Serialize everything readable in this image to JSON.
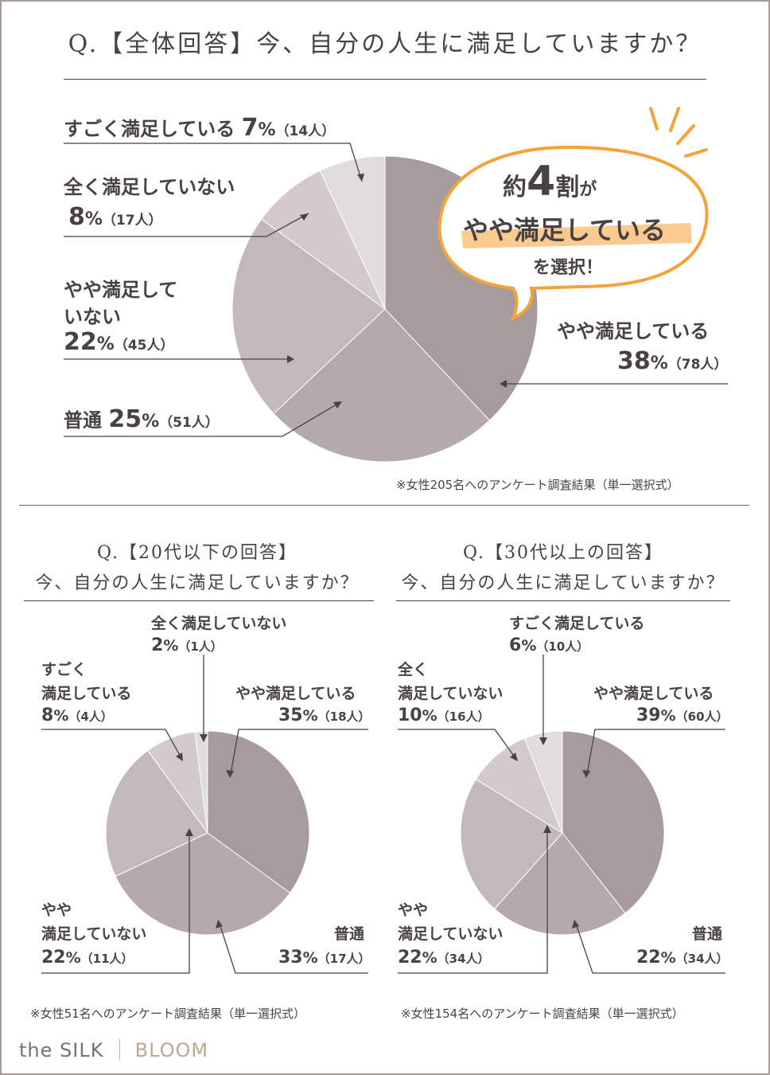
{
  "main": {
    "title": "Q.【全体回答】今、自分の人生に満足していますか？",
    "note": "※女性205名へのアンケート調査結果（単一選択式）",
    "labels": {
      "very": {
        "name": "すごく満足している",
        "pct": "7",
        "unit": "%",
        "count": "（14人）"
      },
      "not_at_all": {
        "name": "全く満足していない",
        "pct": "8",
        "unit": "%",
        "count": "（17人）"
      },
      "somewhat_not_1": "やや満足して",
      "somewhat_not_2": "いない",
      "somewhat_not": {
        "pct": "22",
        "unit": "%",
        "count": "（45人）"
      },
      "normal": {
        "name": "普通",
        "pct": "25",
        "unit": "%",
        "count": "（51人）"
      },
      "somewhat": {
        "name": "やや満足している",
        "pct": "38",
        "unit": "%",
        "count": "（78人）"
      }
    },
    "callout": {
      "pre": "約",
      "num": "4",
      "post1": "割",
      "post2": "が",
      "line2": "やや満足している",
      "line3": "を選択！",
      "accent_color": "#f4a338"
    }
  },
  "under20": {
    "title_line1": "Q.【20代以下の回答】",
    "title_line2": "今、自分の人生に満足していますか？",
    "note": "※女性51名へのアンケート調査結果（単一選択式）",
    "labels": {
      "not_at_all": {
        "name": "全く満足していない",
        "pct": "2",
        "unit": "%",
        "count": "（1人）"
      },
      "very_1": "すごく",
      "very_2": "満足している",
      "very": {
        "pct": "8",
        "unit": "%",
        "count": "（4人）"
      },
      "somewhat": {
        "name": "やや満足している",
        "pct": "35",
        "unit": "%",
        "count": "（18人）"
      },
      "somewhat_not_1": "やや",
      "somewhat_not_2": "満足していない",
      "somewhat_not": {
        "pct": "22",
        "unit": "%",
        "count": "（11人）"
      },
      "normal": {
        "name": "普通",
        "pct": "33",
        "unit": "%",
        "count": "（17人）"
      }
    }
  },
  "over30": {
    "title_line1": "Q.【30代以上の回答】",
    "title_line2": "今、自分の人生に満足していますか？",
    "note": "※女性154名へのアンケート調査結果（単一選択式）",
    "labels": {
      "very": {
        "name": "すごく満足している",
        "pct": "6",
        "unit": "%",
        "count": "（10人）"
      },
      "not_at_all_1": "全く",
      "not_at_all_2": "満足していない",
      "not_at_all": {
        "pct": "10",
        "unit": "%",
        "count": "（16人）"
      },
      "somewhat": {
        "name": "やや満足している",
        "pct": "39",
        "unit": "%",
        "count": "（60人）"
      },
      "somewhat_not_1": "やや",
      "somewhat_not_2": "満足していない",
      "somewhat_not": {
        "pct": "22",
        "unit": "%",
        "count": "（34人）"
      },
      "normal": {
        "name": "普通",
        "pct": "22",
        "unit": "%",
        "count": "（34人）"
      }
    }
  },
  "brand": {
    "left": "the SILK",
    "right": "BLOOM"
  },
  "colors": {
    "somewhat": "#a79b9b",
    "normal": "#b5aaa9",
    "somewhat_not": "#c3b9b9",
    "not_at_all": "#d3cbcb",
    "very": "#e2dcdc",
    "frame": "#a89b99",
    "text": "#4a4242"
  },
  "chart_data": [
    {
      "type": "pie",
      "title": "Q.【全体回答】今、自分の人生に満足していますか？",
      "slices": [
        {
          "label": "やや満足している",
          "value": 38,
          "count": 78
        },
        {
          "label": "普通",
          "value": 25,
          "count": 51
        },
        {
          "label": "やや満足していない",
          "value": 22,
          "count": 45
        },
        {
          "label": "全く満足していない",
          "value": 8,
          "count": 17
        },
        {
          "label": "すごく満足している",
          "value": 7,
          "count": 14
        }
      ]
    },
    {
      "type": "pie",
      "title": "Q.【20代以下の回答】今、自分の人生に満足していますか？",
      "slices": [
        {
          "label": "やや満足している",
          "value": 35,
          "count": 18
        },
        {
          "label": "普通",
          "value": 33,
          "count": 17
        },
        {
          "label": "やや満足していない",
          "value": 22,
          "count": 11
        },
        {
          "label": "すごく満足している",
          "value": 8,
          "count": 4
        },
        {
          "label": "全く満足していない",
          "value": 2,
          "count": 1
        }
      ]
    },
    {
      "type": "pie",
      "title": "Q.【30代以上の回答】今、自分の人生に満足していますか？",
      "slices": [
        {
          "label": "やや満足している",
          "value": 39,
          "count": 60
        },
        {
          "label": "普通",
          "value": 22,
          "count": 34
        },
        {
          "label": "やや満足していない",
          "value": 22,
          "count": 34
        },
        {
          "label": "全く満足していない",
          "value": 10,
          "count": 16
        },
        {
          "label": "すごく満足している",
          "value": 6,
          "count": 10
        }
      ]
    }
  ]
}
